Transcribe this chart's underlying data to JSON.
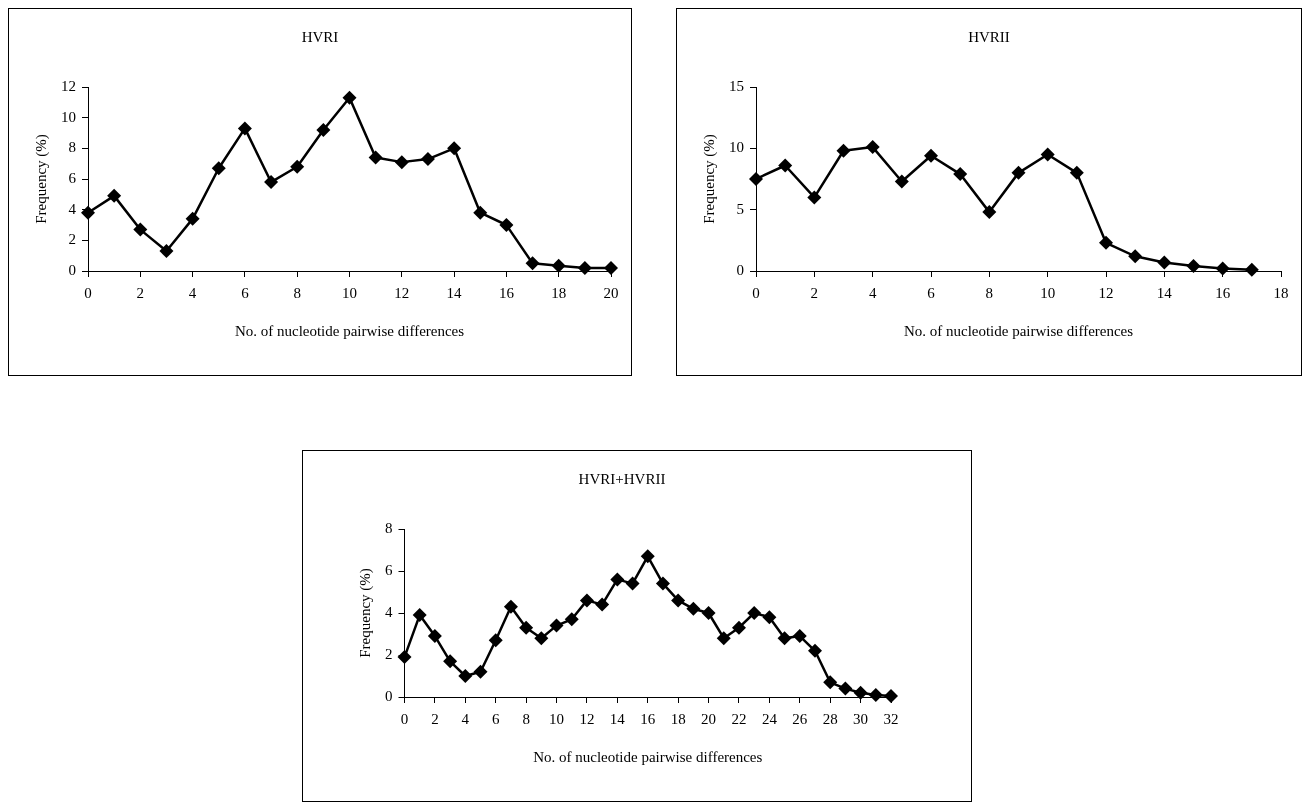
{
  "chart_data": [
    {
      "type": "line",
      "title": "HVRI",
      "xlabel": "No. of nucleotide pairwise differences",
      "ylabel": "Frequency (%)",
      "marker": "diamond",
      "grid": false,
      "legend": false,
      "x": [
        0,
        1,
        2,
        3,
        4,
        5,
        6,
        7,
        8,
        9,
        10,
        11,
        12,
        13,
        14,
        15,
        16,
        17,
        18,
        19,
        20
      ],
      "series": [
        {
          "color": "#000000",
          "values": [
            3.8,
            4.9,
            2.7,
            1.3,
            3.4,
            6.7,
            9.3,
            5.8,
            6.8,
            9.2,
            11.3,
            7.4,
            7.1,
            7.3,
            8.0,
            3.8,
            3.0,
            0.5,
            0.35,
            0.2,
            0.2
          ]
        }
      ],
      "xlim": [
        0,
        20
      ],
      "xticks": [
        0,
        2,
        4,
        6,
        8,
        10,
        12,
        14,
        16,
        18,
        20
      ],
      "ylim": [
        0,
        12
      ],
      "yticks": [
        0,
        2,
        4,
        6,
        8,
        10,
        12
      ]
    },
    {
      "type": "line",
      "title": "HVRII",
      "xlabel": "No. of nucleotide pairwise differences",
      "ylabel": "Frequency (%)",
      "marker": "diamond",
      "grid": false,
      "legend": false,
      "x": [
        0,
        1,
        2,
        3,
        4,
        5,
        6,
        7,
        8,
        9,
        10,
        11,
        12,
        13,
        14,
        15,
        16,
        17
      ],
      "series": [
        {
          "color": "#000000",
          "values": [
            7.5,
            8.6,
            6.0,
            9.8,
            10.1,
            7.3,
            9.4,
            7.9,
            4.8,
            8.0,
            9.5,
            8.0,
            2.3,
            1.2,
            0.7,
            0.4,
            0.2,
            0.1
          ]
        }
      ],
      "xlim": [
        0,
        18
      ],
      "xticks": [
        0,
        2,
        4,
        6,
        8,
        10,
        12,
        14,
        16,
        18
      ],
      "ylim": [
        0,
        15
      ],
      "yticks": [
        0,
        5,
        10,
        15
      ]
    },
    {
      "type": "line",
      "title": "HVRI+HVRII",
      "xlabel": "No. of nucleotide pairwise differences",
      "ylabel": "Frequency (%)",
      "marker": "diamond",
      "grid": false,
      "legend": false,
      "x": [
        0,
        1,
        2,
        3,
        4,
        5,
        6,
        7,
        8,
        9,
        10,
        11,
        12,
        13,
        14,
        15,
        16,
        17,
        18,
        19,
        20,
        21,
        22,
        23,
        24,
        25,
        26,
        27,
        28,
        29,
        30,
        31,
        32
      ],
      "series": [
        {
          "color": "#000000",
          "values": [
            1.9,
            3.9,
            2.9,
            1.7,
            1.0,
            1.2,
            2.7,
            4.3,
            3.3,
            2.8,
            3.4,
            3.7,
            4.6,
            4.4,
            5.6,
            5.4,
            6.7,
            5.4,
            4.6,
            4.2,
            4.0,
            2.8,
            3.3,
            4.0,
            3.8,
            2.8,
            2.9,
            2.2,
            0.7,
            0.4,
            0.2,
            0.1,
            0.05
          ]
        }
      ],
      "xlim": [
        0,
        32
      ],
      "xticks": [
        0,
        2,
        4,
        6,
        8,
        10,
        12,
        14,
        16,
        18,
        20,
        22,
        24,
        26,
        28,
        30,
        32
      ],
      "ylim": [
        0,
        8
      ],
      "yticks": [
        0,
        2,
        4,
        6,
        8
      ]
    }
  ]
}
